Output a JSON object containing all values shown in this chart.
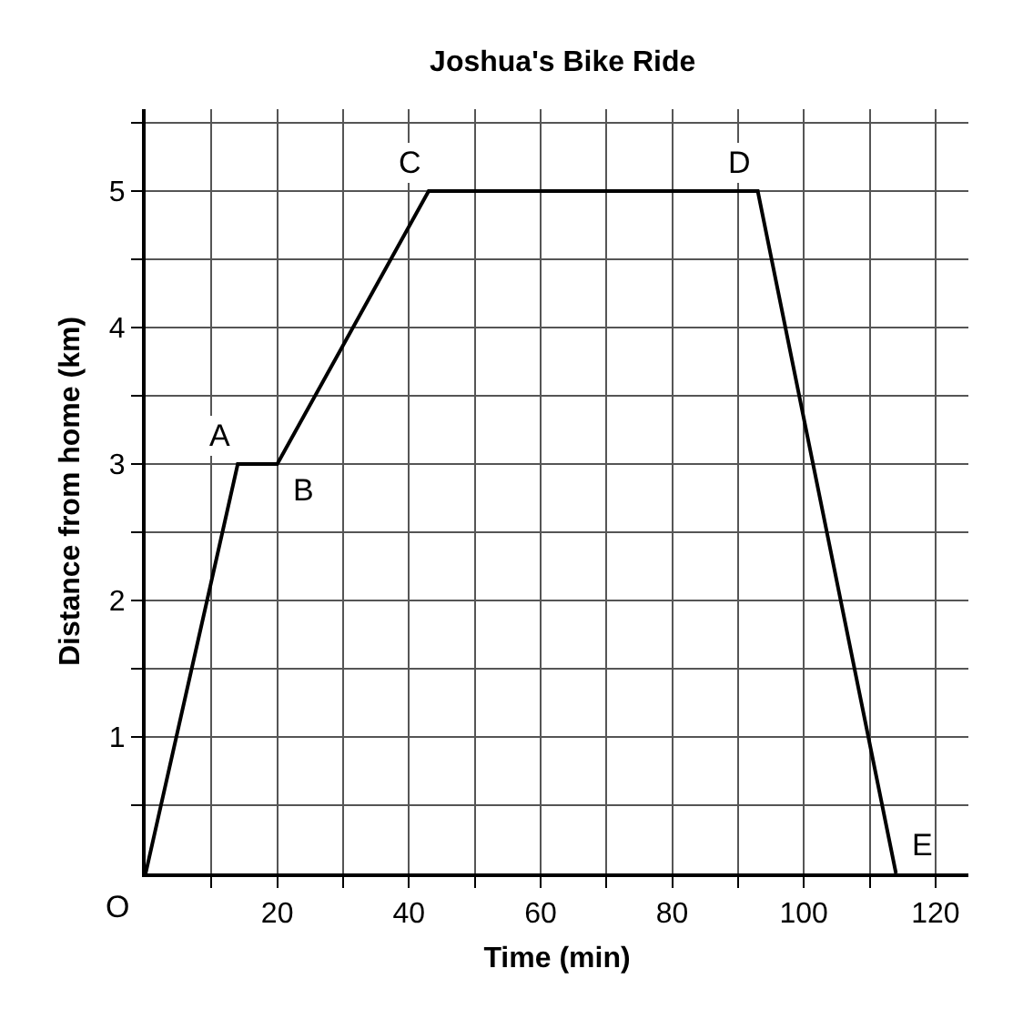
{
  "chart_data": {
    "type": "line",
    "title": "Joshua's Bike Ride",
    "xlabel": "Time (min)",
    "ylabel": "Distance from home (km)",
    "x": [
      0,
      14,
      20,
      43,
      93,
      114
    ],
    "series": [
      {
        "color": "#000000",
        "values": [
          0,
          3,
          3,
          5,
          5,
          0
        ]
      }
    ],
    "xlim": [
      0,
      125
    ],
    "ylim": [
      0,
      5.6
    ],
    "xticks": [
      {
        "value": 10,
        "label": null
      },
      20,
      {
        "value": 30,
        "label": null
      },
      40,
      {
        "value": 50,
        "label": null
      },
      60,
      {
        "value": 70,
        "label": null
      },
      80,
      {
        "value": 90,
        "label": null
      },
      100,
      {
        "value": 110,
        "label": null
      },
      120
    ],
    "yticks": [
      {
        "value": 0.5,
        "label": null
      },
      1,
      {
        "value": 1.5,
        "label": null
      },
      2,
      {
        "value": 2.5,
        "label": null
      },
      3,
      {
        "value": 3.5,
        "label": null
      },
      4,
      {
        "value": 4.5,
        "label": null
      },
      5,
      {
        "value": 5.5,
        "label": null
      }
    ],
    "annotations": [
      {
        "text": "O",
        "x": 0,
        "y": 0
      },
      {
        "text": "A",
        "x": 14,
        "y": 3
      },
      {
        "text": "B",
        "x": 20,
        "y": 3
      },
      {
        "text": "C",
        "x": 43,
        "y": 5
      },
      {
        "text": "D",
        "x": 93,
        "y": 5
      },
      {
        "text": "E",
        "x": 114,
        "y": 0
      }
    ],
    "grid": true,
    "legend": false,
    "marker": "none",
    "line_style": "solid"
  }
}
